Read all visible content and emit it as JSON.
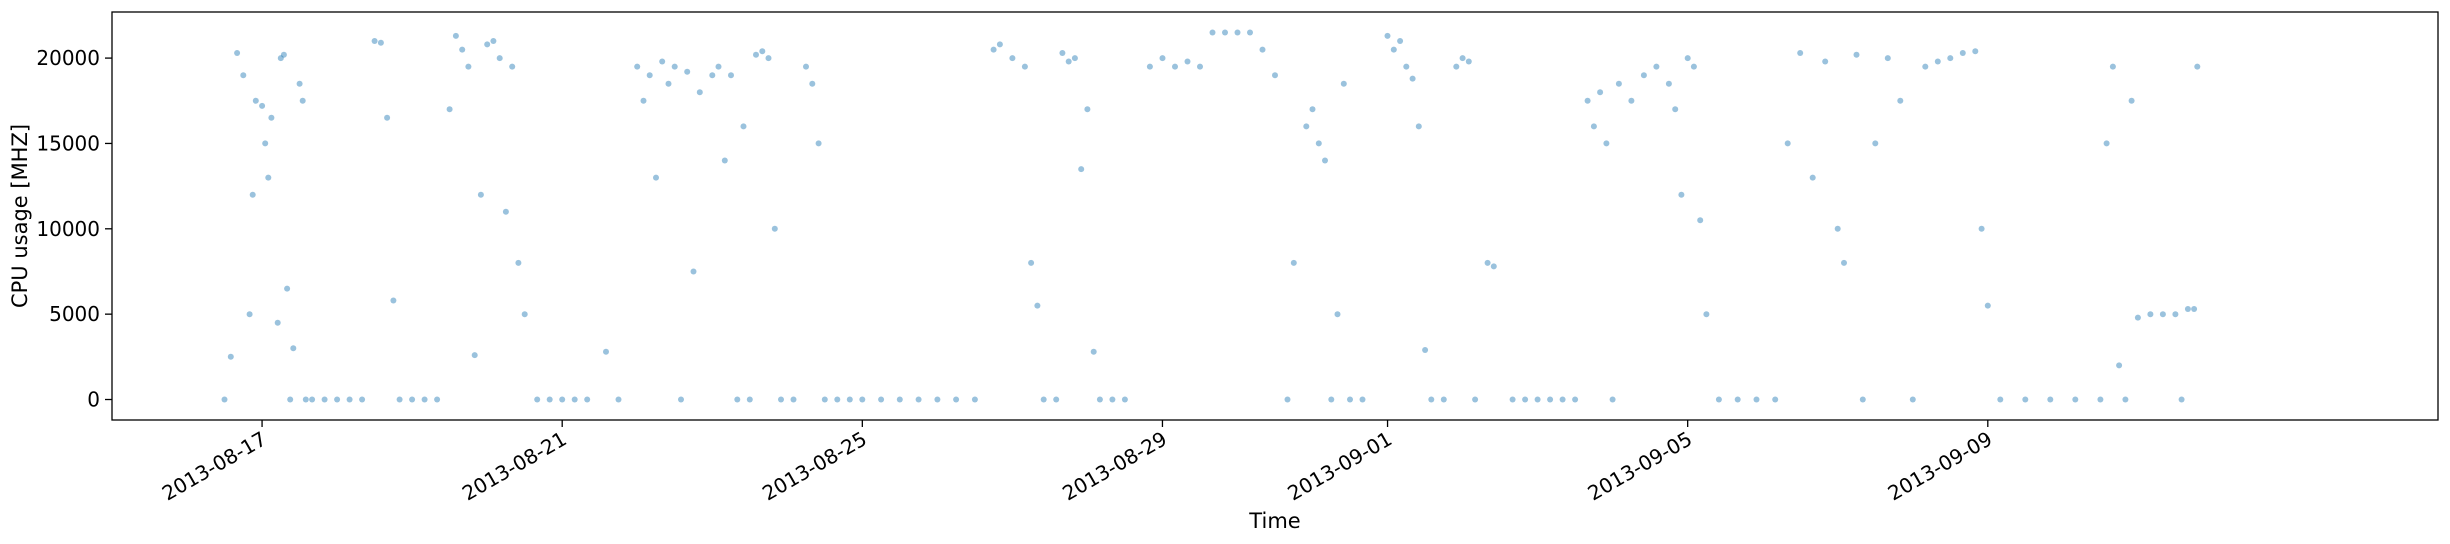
{
  "chart_data": {
    "type": "scatter",
    "title": "",
    "xlabel": "Time",
    "ylabel": "CPU usage [MHZ]",
    "grid": false,
    "legend": "none",
    "color": "#1f77b4",
    "marker_alpha": 0.45,
    "xlim": [
      "2013-08-15",
      "2013-09-15"
    ],
    "ylim": [
      -1200,
      22700
    ],
    "x_ticks": [
      {
        "value": "2013-08-17",
        "label": "2013-08-17"
      },
      {
        "value": "2013-08-21",
        "label": "2013-08-21"
      },
      {
        "value": "2013-08-25",
        "label": "2013-08-25"
      },
      {
        "value": "2013-08-29",
        "label": "2013-08-29"
      },
      {
        "value": "2013-09-01",
        "label": "2013-09-01"
      },
      {
        "value": "2013-09-05",
        "label": "2013-09-05"
      },
      {
        "value": "2013-09-09",
        "label": "2013-09-09"
      }
    ],
    "y_ticks": [
      {
        "value": 0,
        "label": "0"
      },
      {
        "value": 5000,
        "label": "5000"
      },
      {
        "value": 10000,
        "label": "10000"
      },
      {
        "value": 15000,
        "label": "15000"
      },
      {
        "value": 20000,
        "label": "20000"
      }
    ],
    "series": [
      {
        "points": [
          [
            "2013-08-16 12:00",
            0
          ],
          [
            "2013-08-16 14:00",
            2500
          ],
          [
            "2013-08-16 16:00",
            20300
          ],
          [
            "2013-08-16 18:00",
            19000
          ],
          [
            "2013-08-16 20:00",
            5000
          ],
          [
            "2013-08-16 21:00",
            12000
          ],
          [
            "2013-08-16 22:00",
            17500
          ],
          [
            "2013-08-17 00:00",
            17200
          ],
          [
            "2013-08-17 01:00",
            15000
          ],
          [
            "2013-08-17 02:00",
            13000
          ],
          [
            "2013-08-17 03:00",
            16500
          ],
          [
            "2013-08-17 05:00",
            4500
          ],
          [
            "2013-08-17 06:00",
            20000
          ],
          [
            "2013-08-17 07:00",
            20200
          ],
          [
            "2013-08-17 08:00",
            6500
          ],
          [
            "2013-08-17 09:00",
            0
          ],
          [
            "2013-08-17 10:00",
            3000
          ],
          [
            "2013-08-17 12:00",
            18500
          ],
          [
            "2013-08-17 13:00",
            17500
          ],
          [
            "2013-08-17 14:00",
            0
          ],
          [
            "2013-08-17 16:00",
            0
          ],
          [
            "2013-08-17 20:00",
            0
          ],
          [
            "2013-08-18 00:00",
            0
          ],
          [
            "2013-08-18 04:00",
            0
          ],
          [
            "2013-08-18 08:00",
            0
          ],
          [
            "2013-08-18 12:00",
            21000
          ],
          [
            "2013-08-18 14:00",
            20900
          ],
          [
            "2013-08-18 16:00",
            16500
          ],
          [
            "2013-08-18 18:00",
            5800
          ],
          [
            "2013-08-18 20:00",
            0
          ],
          [
            "2013-08-19 00:00",
            0
          ],
          [
            "2013-08-19 04:00",
            0
          ],
          [
            "2013-08-19 08:00",
            0
          ],
          [
            "2013-08-19 12:00",
            17000
          ],
          [
            "2013-08-19 14:00",
            21300
          ],
          [
            "2013-08-19 16:00",
            20500
          ],
          [
            "2013-08-19 18:00",
            19500
          ],
          [
            "2013-08-19 20:00",
            2600
          ],
          [
            "2013-08-19 22:00",
            12000
          ],
          [
            "2013-08-20 00:00",
            20800
          ],
          [
            "2013-08-20 02:00",
            21000
          ],
          [
            "2013-08-20 04:00",
            20000
          ],
          [
            "2013-08-20 06:00",
            11000
          ],
          [
            "2013-08-20 08:00",
            19500
          ],
          [
            "2013-08-20 10:00",
            8000
          ],
          [
            "2013-08-20 12:00",
            5000
          ],
          [
            "2013-08-20 16:00",
            0
          ],
          [
            "2013-08-20 20:00",
            0
          ],
          [
            "2013-08-21 00:00",
            0
          ],
          [
            "2013-08-21 04:00",
            0
          ],
          [
            "2013-08-21 08:00",
            0
          ],
          [
            "2013-08-21 14:00",
            2800
          ],
          [
            "2013-08-21 18:00",
            0
          ],
          [
            "2013-08-22 00:00",
            19500
          ],
          [
            "2013-08-22 02:00",
            17500
          ],
          [
            "2013-08-22 04:00",
            19000
          ],
          [
            "2013-08-22 06:00",
            13000
          ],
          [
            "2013-08-22 08:00",
            19800
          ],
          [
            "2013-08-22 10:00",
            18500
          ],
          [
            "2013-08-22 12:00",
            19500
          ],
          [
            "2013-08-22 14:00",
            0
          ],
          [
            "2013-08-22 16:00",
            19200
          ],
          [
            "2013-08-22 18:00",
            7500
          ],
          [
            "2013-08-22 20:00",
            18000
          ],
          [
            "2013-08-23 00:00",
            19000
          ],
          [
            "2013-08-23 02:00",
            19500
          ],
          [
            "2013-08-23 04:00",
            14000
          ],
          [
            "2013-08-23 06:00",
            19000
          ],
          [
            "2013-08-23 08:00",
            0
          ],
          [
            "2013-08-23 10:00",
            16000
          ],
          [
            "2013-08-23 12:00",
            0
          ],
          [
            "2013-08-23 14:00",
            20200
          ],
          [
            "2013-08-23 16:00",
            20400
          ],
          [
            "2013-08-23 18:00",
            20000
          ],
          [
            "2013-08-23 20:00",
            10000
          ],
          [
            "2013-08-23 22:00",
            0
          ],
          [
            "2013-08-24 02:00",
            0
          ],
          [
            "2013-08-24 06:00",
            19500
          ],
          [
            "2013-08-24 08:00",
            18500
          ],
          [
            "2013-08-24 10:00",
            15000
          ],
          [
            "2013-08-24 12:00",
            0
          ],
          [
            "2013-08-24 16:00",
            0
          ],
          [
            "2013-08-24 20:00",
            0
          ],
          [
            "2013-08-25 00:00",
            0
          ],
          [
            "2013-08-25 06:00",
            0
          ],
          [
            "2013-08-25 12:00",
            0
          ],
          [
            "2013-08-25 18:00",
            0
          ],
          [
            "2013-08-26 00:00",
            0
          ],
          [
            "2013-08-26 06:00",
            0
          ],
          [
            "2013-08-26 12:00",
            0
          ],
          [
            "2013-08-26 18:00",
            20500
          ],
          [
            "2013-08-26 20:00",
            20800
          ],
          [
            "2013-08-27 00:00",
            20000
          ],
          [
            "2013-08-27 04:00",
            19500
          ],
          [
            "2013-08-27 06:00",
            8000
          ],
          [
            "2013-08-27 08:00",
            5500
          ],
          [
            "2013-08-27 10:00",
            0
          ],
          [
            "2013-08-27 14:00",
            0
          ],
          [
            "2013-08-27 16:00",
            20300
          ],
          [
            "2013-08-27 18:00",
            19800
          ],
          [
            "2013-08-27 20:00",
            20000
          ],
          [
            "2013-08-27 22:00",
            13500
          ],
          [
            "2013-08-28 00:00",
            17000
          ],
          [
            "2013-08-28 02:00",
            2800
          ],
          [
            "2013-08-28 04:00",
            0
          ],
          [
            "2013-08-28 08:00",
            0
          ],
          [
            "2013-08-28 12:00",
            0
          ],
          [
            "2013-08-28 20:00",
            19500
          ],
          [
            "2013-08-29 00:00",
            20000
          ],
          [
            "2013-08-29 04:00",
            19500
          ],
          [
            "2013-08-29 08:00",
            19800
          ],
          [
            "2013-08-29 12:00",
            19500
          ],
          [
            "2013-08-29 16:00",
            21500
          ],
          [
            "2013-08-29 20:00",
            21500
          ],
          [
            "2013-08-30 00:00",
            21500
          ],
          [
            "2013-08-30 04:00",
            21500
          ],
          [
            "2013-08-30 08:00",
            20500
          ],
          [
            "2013-08-30 12:00",
            19000
          ],
          [
            "2013-08-30 16:00",
            0
          ],
          [
            "2013-08-30 18:00",
            8000
          ],
          [
            "2013-08-30 22:00",
            16000
          ],
          [
            "2013-08-31 00:00",
            17000
          ],
          [
            "2013-08-31 02:00",
            15000
          ],
          [
            "2013-08-31 04:00",
            14000
          ],
          [
            "2013-08-31 06:00",
            0
          ],
          [
            "2013-08-31 08:00",
            5000
          ],
          [
            "2013-08-31 10:00",
            18500
          ],
          [
            "2013-08-31 12:00",
            0
          ],
          [
            "2013-08-31 16:00",
            0
          ],
          [
            "2013-09-01 00:00",
            21300
          ],
          [
            "2013-09-01 02:00",
            20500
          ],
          [
            "2013-09-01 04:00",
            21000
          ],
          [
            "2013-09-01 06:00",
            19500
          ],
          [
            "2013-09-01 08:00",
            18800
          ],
          [
            "2013-09-01 10:00",
            16000
          ],
          [
            "2013-09-01 12:00",
            2900
          ],
          [
            "2013-09-01 14:00",
            0
          ],
          [
            "2013-09-01 18:00",
            0
          ],
          [
            "2013-09-01 22:00",
            19500
          ],
          [
            "2013-09-02 00:00",
            20000
          ],
          [
            "2013-09-02 02:00",
            19800
          ],
          [
            "2013-09-02 04:00",
            0
          ],
          [
            "2013-09-02 08:00",
            8000
          ],
          [
            "2013-09-02 10:00",
            7800
          ],
          [
            "2013-09-02 16:00",
            0
          ],
          [
            "2013-09-02 20:00",
            0
          ],
          [
            "2013-09-03 00:00",
            0
          ],
          [
            "2013-09-03 04:00",
            0
          ],
          [
            "2013-09-03 08:00",
            0
          ],
          [
            "2013-09-03 12:00",
            0
          ],
          [
            "2013-09-03 16:00",
            17500
          ],
          [
            "2013-09-03 18:00",
            16000
          ],
          [
            "2013-09-03 20:00",
            18000
          ],
          [
            "2013-09-03 22:00",
            15000
          ],
          [
            "2013-09-04 00:00",
            0
          ],
          [
            "2013-09-04 02:00",
            18500
          ],
          [
            "2013-09-04 06:00",
            17500
          ],
          [
            "2013-09-04 10:00",
            19000
          ],
          [
            "2013-09-04 14:00",
            19500
          ],
          [
            "2013-09-04 18:00",
            18500
          ],
          [
            "2013-09-04 20:00",
            17000
          ],
          [
            "2013-09-04 22:00",
            12000
          ],
          [
            "2013-09-05 00:00",
            20000
          ],
          [
            "2013-09-05 02:00",
            19500
          ],
          [
            "2013-09-05 04:00",
            10500
          ],
          [
            "2013-09-05 06:00",
            5000
          ],
          [
            "2013-09-05 10:00",
            0
          ],
          [
            "2013-09-05 16:00",
            0
          ],
          [
            "2013-09-05 22:00",
            0
          ],
          [
            "2013-09-06 04:00",
            0
          ],
          [
            "2013-09-06 08:00",
            15000
          ],
          [
            "2013-09-06 12:00",
            20300
          ],
          [
            "2013-09-06 16:00",
            13000
          ],
          [
            "2013-09-06 20:00",
            19800
          ],
          [
            "2013-09-07 00:00",
            10000
          ],
          [
            "2013-09-07 02:00",
            8000
          ],
          [
            "2013-09-07 06:00",
            20200
          ],
          [
            "2013-09-07 08:00",
            0
          ],
          [
            "2013-09-07 12:00",
            15000
          ],
          [
            "2013-09-07 16:00",
            20000
          ],
          [
            "2013-09-07 20:00",
            17500
          ],
          [
            "2013-09-08 00:00",
            0
          ],
          [
            "2013-09-08 04:00",
            19500
          ],
          [
            "2013-09-08 08:00",
            19800
          ],
          [
            "2013-09-08 12:00",
            20000
          ],
          [
            "2013-09-08 16:00",
            20300
          ],
          [
            "2013-09-08 20:00",
            20400
          ],
          [
            "2013-09-08 22:00",
            10000
          ],
          [
            "2013-09-09 00:00",
            5500
          ],
          [
            "2013-09-09 04:00",
            0
          ],
          [
            "2013-09-09 12:00",
            0
          ],
          [
            "2013-09-09 20:00",
            0
          ],
          [
            "2013-09-10 04:00",
            0
          ],
          [
            "2013-09-10 12:00",
            0
          ],
          [
            "2013-09-10 14:00",
            15000
          ],
          [
            "2013-09-10 16:00",
            19500
          ],
          [
            "2013-09-10 18:00",
            2000
          ],
          [
            "2013-09-10 20:00",
            0
          ],
          [
            "2013-09-10 22:00",
            17500
          ],
          [
            "2013-09-11 00:00",
            4800
          ],
          [
            "2013-09-11 04:00",
            5000
          ],
          [
            "2013-09-11 08:00",
            5000
          ],
          [
            "2013-09-11 12:00",
            5000
          ],
          [
            "2013-09-11 14:00",
            0
          ],
          [
            "2013-09-11 16:00",
            5300
          ],
          [
            "2013-09-11 18:00",
            5300
          ],
          [
            "2013-09-11 19:00",
            19500
          ]
        ]
      }
    ]
  }
}
